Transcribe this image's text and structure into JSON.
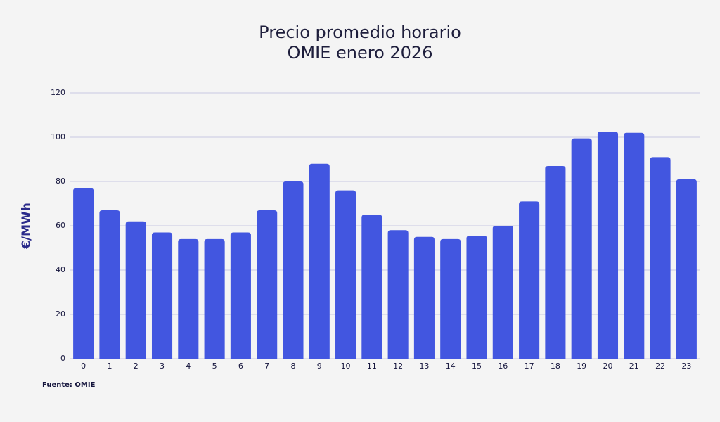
{
  "chart_data": {
    "type": "bar",
    "title": [
      "Precio promedio horario",
      "OMIE enero 2026"
    ],
    "y_label": "€/MWh",
    "source": "Fuente: OMIE",
    "categories": [
      "0",
      "1",
      "2",
      "3",
      "4",
      "5",
      "6",
      "7",
      "8",
      "9",
      "10",
      "11",
      "12",
      "13",
      "14",
      "15",
      "16",
      "17",
      "18",
      "19",
      "20",
      "21",
      "22",
      "23"
    ],
    "values": [
      77,
      67,
      62,
      57,
      54,
      54,
      57,
      67,
      80,
      88,
      76,
      65,
      58,
      55,
      54,
      55.5,
      60,
      71,
      87,
      99.5,
      102.5,
      102,
      91,
      81
    ],
    "color": "#4256e0",
    "ylim": [
      0,
      120
    ],
    "yticks": [
      0,
      20,
      40,
      60,
      80,
      100,
      120
    ],
    "grid": true
  }
}
